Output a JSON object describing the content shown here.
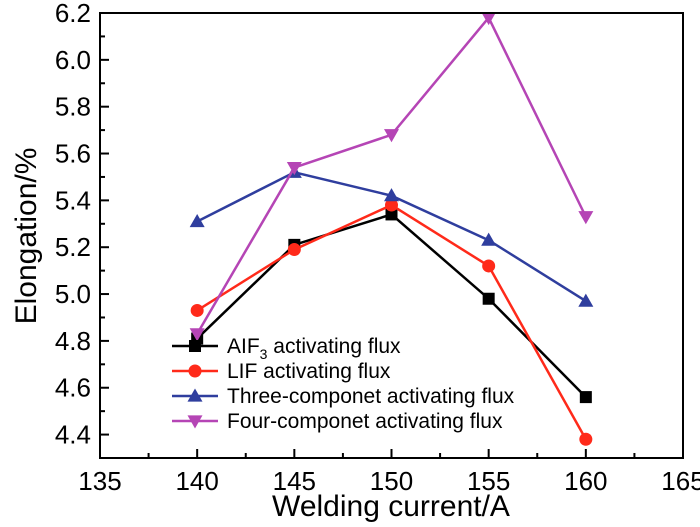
{
  "chart_data": {
    "type": "line",
    "xlabel": "Welding current/A",
    "ylabel": "Elongation/%",
    "xlim": [
      135,
      165
    ],
    "ylim": [
      4.3,
      6.2
    ],
    "xticks": [
      135,
      140,
      145,
      150,
      155,
      160,
      165
    ],
    "yticks": [
      4.4,
      4.6,
      4.8,
      5.0,
      5.2,
      5.4,
      5.6,
      5.8,
      6.0,
      6.2
    ],
    "x": [
      140,
      145,
      150,
      155,
      160
    ],
    "grid": false,
    "legend_position": "bottom-left",
    "series": [
      {
        "name": "AIF",
        "name_sub": "3",
        "name_rest": " activating flux",
        "color": "#000000",
        "marker": "square",
        "values": [
          4.81,
          5.21,
          5.34,
          4.98,
          4.56
        ]
      },
      {
        "name": "LIF activating flux",
        "color": "#ff2a1a",
        "marker": "circle",
        "values": [
          4.93,
          5.19,
          5.38,
          5.12,
          4.38
        ]
      },
      {
        "name": "Three-componet activating flux",
        "color": "#2f3e9e",
        "marker": "triangle-up",
        "values": [
          5.31,
          5.52,
          5.42,
          5.23,
          4.97
        ]
      },
      {
        "name": "Four-componet activating flux",
        "color": "#b545b5",
        "marker": "triangle-down",
        "values": [
          4.83,
          5.54,
          5.68,
          6.18,
          5.33
        ]
      }
    ]
  }
}
